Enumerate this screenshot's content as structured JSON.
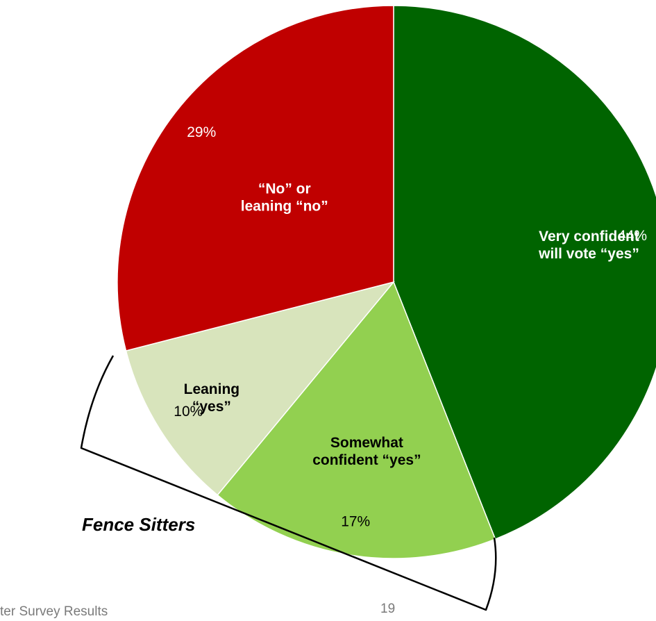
{
  "chart_data": {
    "type": "pie",
    "slices": [
      {
        "label": [
          "Very confident",
          "will vote “yes”"
        ],
        "value": 44,
        "value_label": "44%",
        "color": "#006400",
        "text_color": "#ffffff",
        "label_color": "#ffffff"
      },
      {
        "label": [
          "Somewhat",
          "confident “yes”"
        ],
        "value": 17,
        "value_label": "17%",
        "color": "#92d050",
        "text_color": "#000000",
        "label_color": "#000000"
      },
      {
        "label": [
          "Leaning",
          "“yes”"
        ],
        "value": 10,
        "value_label": "10%",
        "color": "#d8e4bc",
        "text_color": "#000000",
        "label_color": "#000000"
      },
      {
        "label": [
          "“No” or",
          "leaning “no”"
        ],
        "value": 29,
        "value_label": "29%",
        "color": "#c00000",
        "text_color": "#ffffff",
        "label_color": "#ffffff"
      }
    ]
  },
  "annotation": "Fence Sitters",
  "footer_left": "ter Survey Results",
  "page_number": "19"
}
